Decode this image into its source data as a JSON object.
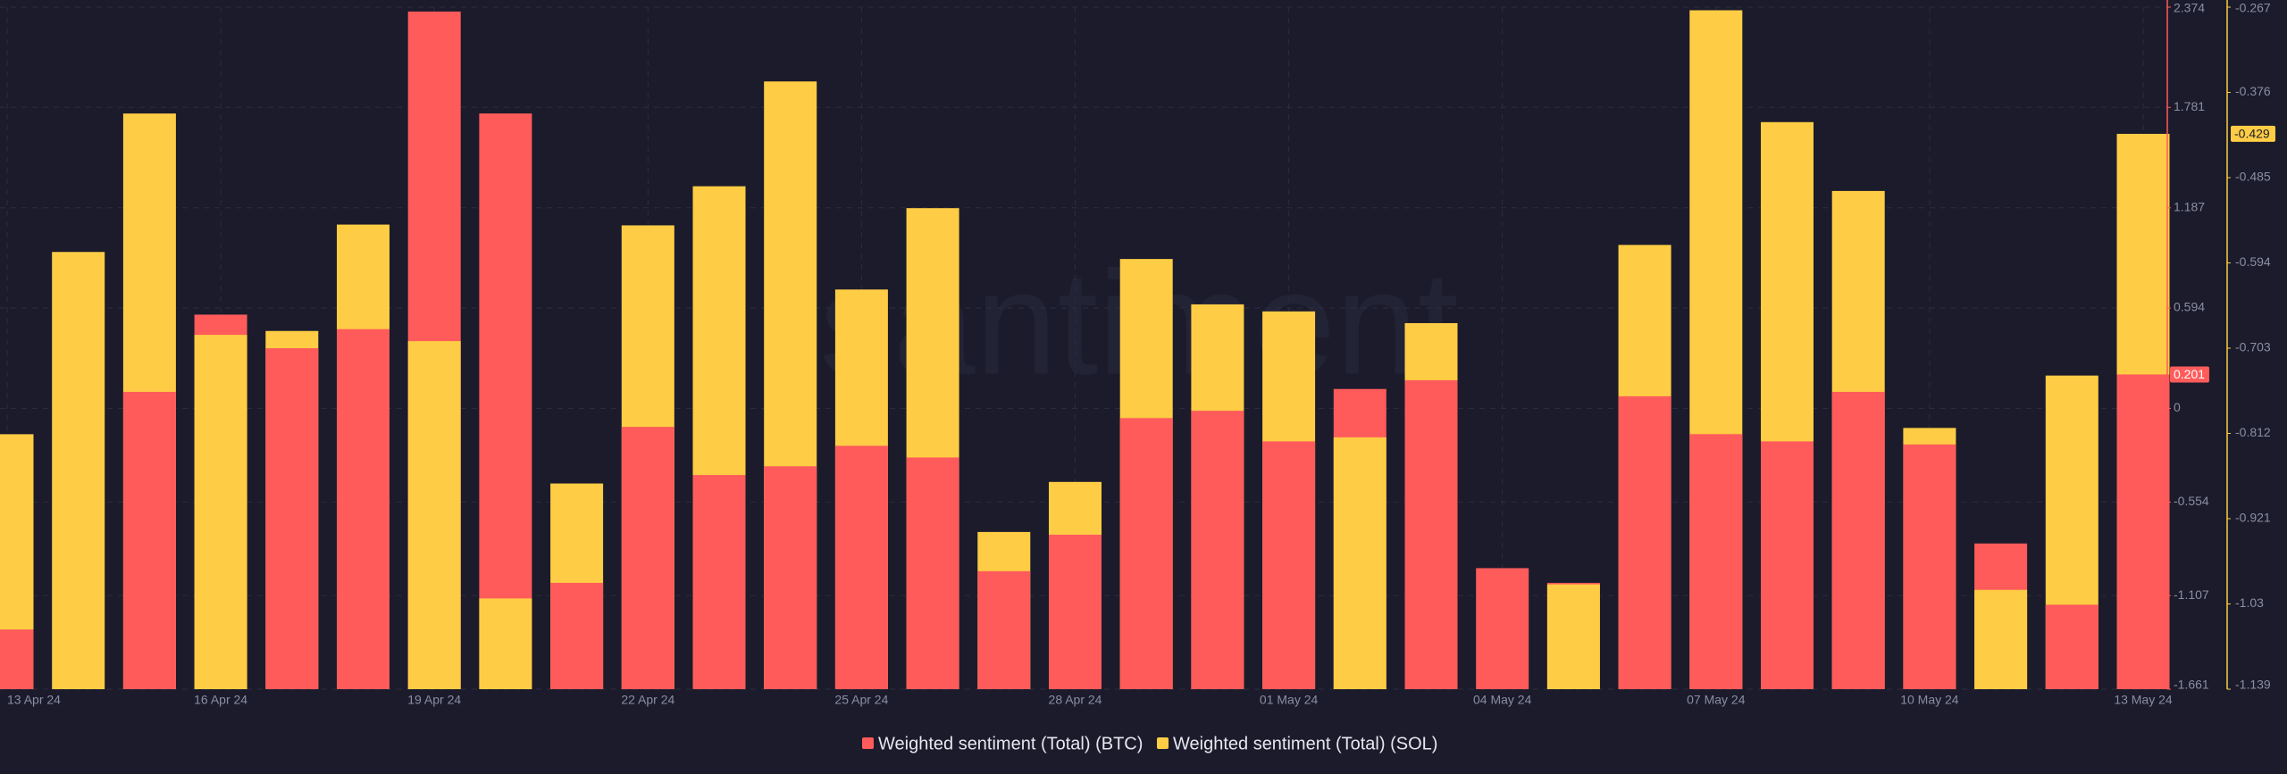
{
  "chart_data": {
    "type": "bar",
    "watermark": "santiment",
    "categories": [
      "13 Apr 24",
      null,
      null,
      "16 Apr 24",
      null,
      null,
      "19 Apr 24",
      null,
      null,
      "22 Apr 24",
      null,
      null,
      "25 Apr 24",
      null,
      null,
      "28 Apr 24",
      null,
      null,
      "01 May 24",
      null,
      null,
      "04 May 24",
      null,
      null,
      "07 May 24",
      null,
      null,
      "10 May 24",
      null,
      null,
      "13 May 24"
    ],
    "series": [
      {
        "name": "Weighted sentiment (Total) (BTC)",
        "color": "#ff5b5b",
        "values": [
          -1.308,
          null,
          0.098,
          0.555,
          0.356,
          0.469,
          2.348,
          1.745,
          -1.032,
          -0.109,
          -0.394,
          -0.342,
          -0.221,
          -0.29,
          -0.963,
          -0.747,
          -0.057,
          -0.014,
          -0.195,
          0.115,
          0.167,
          -0.945,
          -1.032,
          0.072,
          -0.152,
          -0.195,
          0.098,
          -0.213,
          -0.799,
          -1.161,
          0.201
        ]
      },
      {
        "name": "Weighted sentiment (Total) (SOL)",
        "color": "#ffcd45",
        "axis": "y2",
        "values": [
          -0.813,
          -0.58,
          -0.403,
          -0.686,
          -0.681,
          -0.545,
          -0.694,
          -1.023,
          -0.876,
          -0.546,
          -0.496,
          -0.362,
          -0.628,
          -0.524,
          -0.938,
          -0.874,
          -0.589,
          -0.647,
          -0.656,
          -0.817,
          -0.671,
          null,
          -1.005,
          -0.571,
          -0.271,
          -0.414,
          -0.502,
          -0.805,
          -1.012,
          -0.738,
          -0.429
        ]
      }
    ],
    "ylim": [
      -1.661,
      2.374
    ],
    "yticks": [
      -1.661,
      -1.107,
      -0.554,
      0,
      0.594,
      1.187,
      1.781,
      2.374
    ],
    "y2lim": [
      -1.139,
      -0.267
    ],
    "y2ticks": [
      -1.139,
      -1.03,
      -0.921,
      -0.812,
      -0.703,
      -0.594,
      -0.485,
      -0.376,
      -0.267
    ],
    "grid": true
  }
}
